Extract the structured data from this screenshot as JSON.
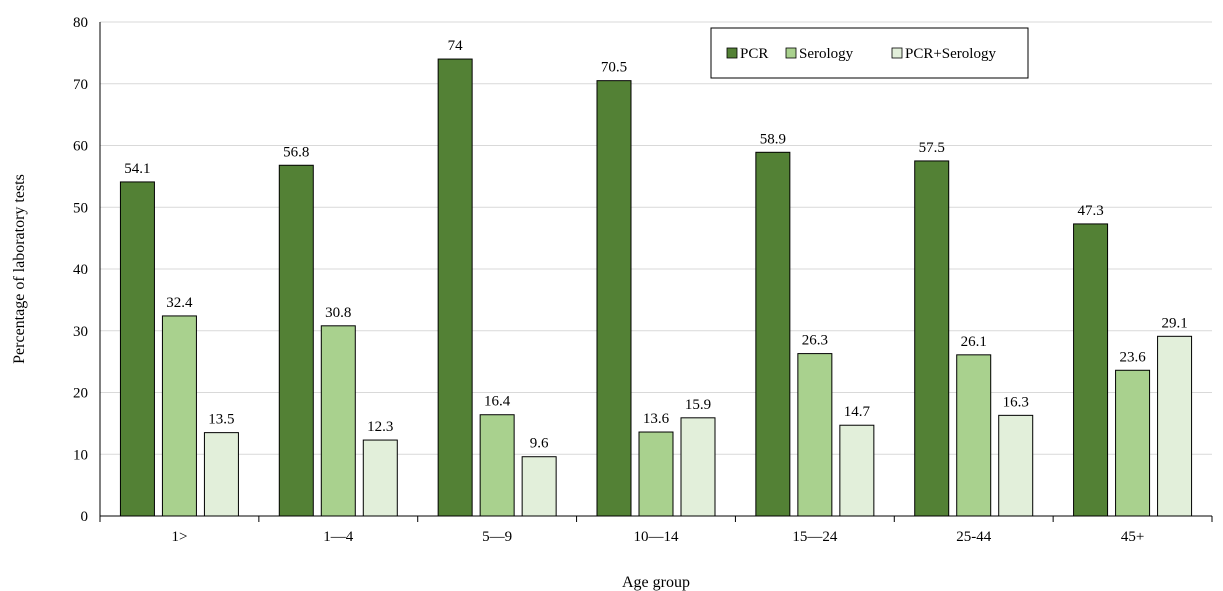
{
  "chart_data": {
    "type": "bar",
    "title": "",
    "xlabel": "Age group",
    "ylabel": "Percentage of laboratory tests",
    "ylim": [
      0,
      80
    ],
    "yticks": [
      0,
      10,
      20,
      30,
      40,
      50,
      60,
      70,
      80
    ],
    "grid": true,
    "legend_position": "top-right",
    "categories": [
      "1>",
      "1—4",
      "5—9",
      "10—14",
      "15—24",
      "25-44",
      "45+"
    ],
    "series": [
      {
        "name": "PCR",
        "color": "#538135",
        "values": [
          54.1,
          56.8,
          74,
          70.5,
          58.9,
          57.5,
          47.3
        ]
      },
      {
        "name": "Serology",
        "color": "#a9d18e",
        "values": [
          32.4,
          30.8,
          16.4,
          13.6,
          26.3,
          26.1,
          23.6
        ]
      },
      {
        "name": "PCR+Serology",
        "color": "#e2efda",
        "values": [
          13.5,
          12.3,
          9.6,
          15.9,
          14.7,
          16.3,
          29.1
        ]
      }
    ]
  }
}
